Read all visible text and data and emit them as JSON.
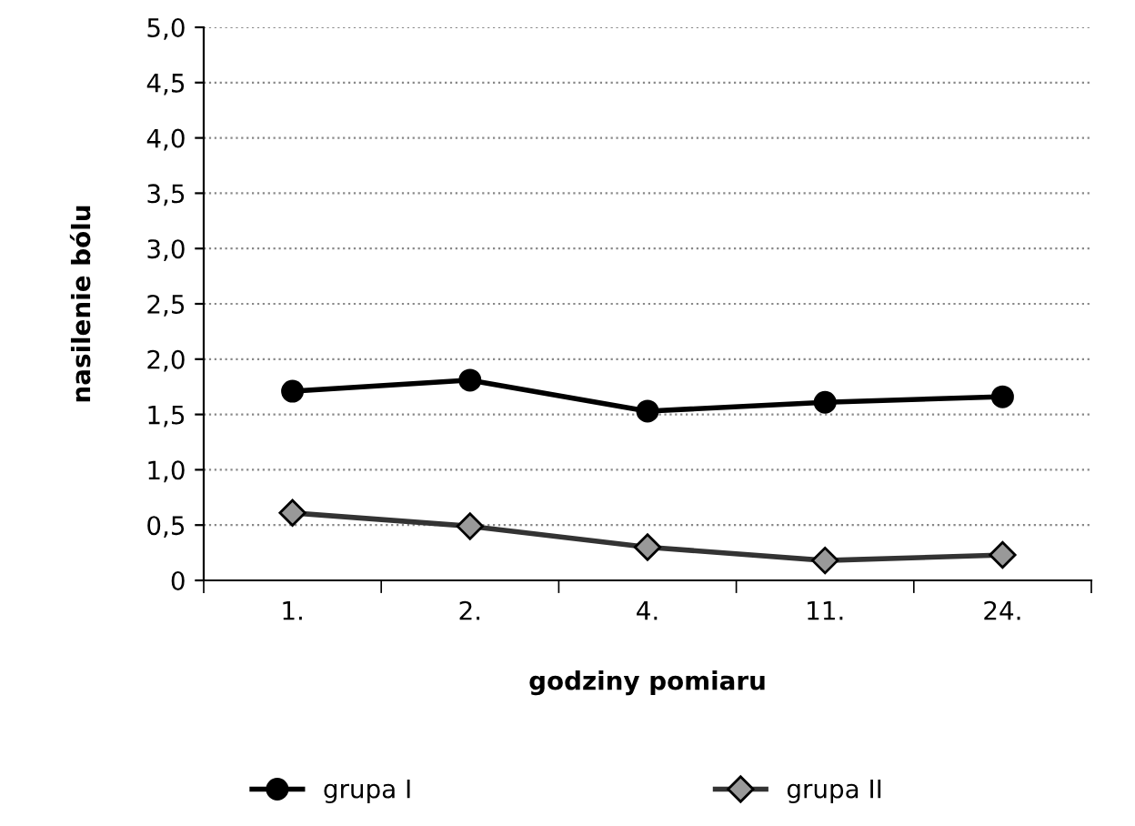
{
  "chart_data": {
    "type": "line",
    "xlabel": "godziny pomiaru",
    "ylabel": "nasilenie bólu",
    "categories": [
      "1.",
      "2.",
      "4.",
      "11.",
      "24."
    ],
    "series": [
      {
        "name": "grupa I",
        "color": "#000000",
        "values": [
          1.71,
          1.81,
          1.53,
          1.61,
          1.66
        ],
        "marker": "circle"
      },
      {
        "name": "grupa II",
        "color": "#999999",
        "values": [
          0.61,
          0.49,
          0.3,
          0.18,
          0.23
        ],
        "marker": "diamond"
      }
    ],
    "ylim": [
      0,
      5
    ],
    "yticks": [
      0,
      {
        "value": 0.5,
        "label": "0,5"
      },
      {
        "value": 1,
        "label": "1,0"
      },
      {
        "value": 1.5,
        "label": "1,5"
      },
      {
        "value": 2,
        "label": "2,0"
      },
      {
        "value": 2.5,
        "label": "2,5"
      },
      {
        "value": 3,
        "label": "3,0"
      },
      {
        "value": 3.5,
        "label": "3,5"
      },
      {
        "value": 4,
        "label": "4,0"
      },
      {
        "value": 4.5,
        "label": "4,5"
      },
      {
        "value": 5,
        "label": "5,0"
      }
    ],
    "grid": "y",
    "legend": "bottom",
    "line_style": "solid"
  }
}
